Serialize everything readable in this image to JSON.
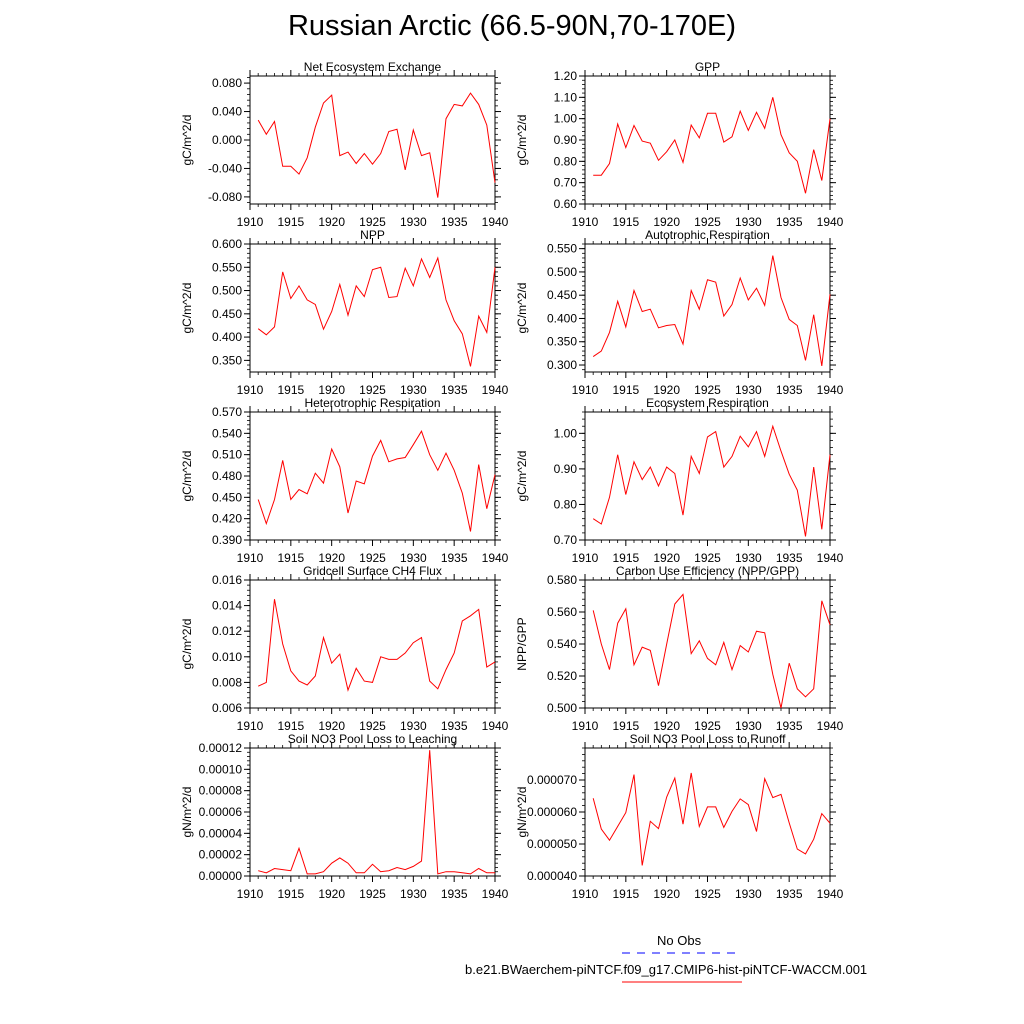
{
  "title": "Russian Arctic (66.5-90N,70-170E)",
  "legend": [
    {
      "label": "No Obs",
      "color": "#0000ff",
      "dash": true
    },
    {
      "label": "b.e21.BWaerchem-piNTCF.f09_g17.CMIP6-hist-piNTCF-WACCM.001",
      "color": "#ff0000",
      "dash": false
    }
  ],
  "chart_data": [
    {
      "type": "line",
      "title": "Net Ecosystem Exchange",
      "ylabel": "gC/m^2/d",
      "ylim": [
        -0.09,
        0.09
      ],
      "xlim": [
        1910,
        1940
      ],
      "yticks": [
        "0.080",
        "0.040",
        "0.000",
        "-0.040",
        "-0.080"
      ],
      "ytick_values": [
        0.08,
        0.04,
        0.0,
        -0.04,
        -0.08
      ],
      "xticks": [
        "1910",
        "1915",
        "1920",
        "1925",
        "1930",
        "1935",
        "1940"
      ],
      "x": [
        1911,
        1912,
        1913,
        1914,
        1915,
        1916,
        1917,
        1918,
        1919,
        1920,
        1921,
        1922,
        1923,
        1924,
        1925,
        1926,
        1927,
        1928,
        1929,
        1930,
        1931,
        1932,
        1933,
        1934,
        1935,
        1936,
        1937,
        1938,
        1939,
        1940
      ],
      "series": [
        {
          "values": [
            0.028,
            0.008,
            0.026,
            -0.037,
            -0.037,
            -0.048,
            -0.025,
            0.018,
            0.052,
            0.063,
            -0.022,
            -0.017,
            -0.033,
            -0.019,
            -0.034,
            -0.019,
            0.012,
            0.015,
            -0.042,
            0.014,
            -0.022,
            -0.018,
            -0.081,
            0.03,
            0.05,
            0.048,
            0.066,
            0.05,
            0.021,
            -0.06
          ]
        }
      ]
    },
    {
      "type": "line",
      "title": "GPP",
      "ylabel": "gC/m^2/d",
      "ylim": [
        0.6,
        1.2
      ],
      "xlim": [
        1910,
        1940
      ],
      "yticks": [
        "1.20",
        "1.10",
        "1.00",
        "0.90",
        "0.80",
        "0.70",
        "0.60"
      ],
      "ytick_values": [
        1.2,
        1.1,
        1.0,
        0.9,
        0.8,
        0.7,
        0.6
      ],
      "xticks": [
        "1910",
        "1915",
        "1920",
        "1925",
        "1930",
        "1935",
        "1940"
      ],
      "x": [
        1911,
        1912,
        1913,
        1914,
        1915,
        1916,
        1917,
        1918,
        1919,
        1920,
        1921,
        1922,
        1923,
        1924,
        1925,
        1926,
        1927,
        1928,
        1929,
        1930,
        1931,
        1932,
        1933,
        1934,
        1935,
        1936,
        1937,
        1938,
        1939,
        1940
      ],
      "series": [
        {
          "values": [
            0.735,
            0.735,
            0.79,
            0.975,
            0.865,
            0.968,
            0.895,
            0.885,
            0.805,
            0.845,
            0.9,
            0.795,
            0.97,
            0.91,
            1.025,
            1.025,
            0.89,
            0.915,
            1.035,
            0.945,
            1.03,
            0.955,
            1.1,
            0.925,
            0.84,
            0.8,
            0.65,
            0.855,
            0.71,
            1.0
          ]
        }
      ]
    },
    {
      "type": "line",
      "title": "NPP",
      "ylabel": "gC/m^2/d",
      "ylim": [
        0.325,
        0.6
      ],
      "xlim": [
        1910,
        1940
      ],
      "yticks": [
        "0.600",
        "0.550",
        "0.500",
        "0.450",
        "0.400",
        "0.350"
      ],
      "ytick_values": [
        0.6,
        0.55,
        0.5,
        0.45,
        0.4,
        0.35
      ],
      "xticks": [
        "1910",
        "1915",
        "1920",
        "1925",
        "1930",
        "1935",
        "1940"
      ],
      "x": [
        1911,
        1912,
        1913,
        1914,
        1915,
        1916,
        1917,
        1918,
        1919,
        1920,
        1921,
        1922,
        1923,
        1924,
        1925,
        1926,
        1927,
        1928,
        1929,
        1930,
        1931,
        1932,
        1933,
        1934,
        1935,
        1936,
        1937,
        1938,
        1939,
        1940
      ],
      "series": [
        {
          "values": [
            0.418,
            0.405,
            0.422,
            0.54,
            0.483,
            0.51,
            0.48,
            0.47,
            0.417,
            0.455,
            0.513,
            0.447,
            0.51,
            0.487,
            0.545,
            0.55,
            0.485,
            0.487,
            0.548,
            0.51,
            0.568,
            0.528,
            0.57,
            0.48,
            0.435,
            0.407,
            0.337,
            0.445,
            0.41,
            0.55
          ]
        }
      ]
    },
    {
      "type": "line",
      "title": "Autotrophic Respiration",
      "ylabel": "gC/m^2/d",
      "ylim": [
        0.285,
        0.56
      ],
      "xlim": [
        1910,
        1940
      ],
      "yticks": [
        "0.550",
        "0.500",
        "0.450",
        "0.400",
        "0.350",
        "0.300"
      ],
      "ytick_values": [
        0.55,
        0.5,
        0.45,
        0.4,
        0.35,
        0.3
      ],
      "xticks": [
        "1910",
        "1915",
        "1920",
        "1925",
        "1930",
        "1935",
        "1940"
      ],
      "x": [
        1911,
        1912,
        1913,
        1914,
        1915,
        1916,
        1917,
        1918,
        1919,
        1920,
        1921,
        1922,
        1923,
        1924,
        1925,
        1926,
        1927,
        1928,
        1929,
        1930,
        1931,
        1932,
        1933,
        1934,
        1935,
        1936,
        1937,
        1938,
        1939,
        1940
      ],
      "series": [
        {
          "values": [
            0.318,
            0.33,
            0.37,
            0.437,
            0.382,
            0.46,
            0.415,
            0.42,
            0.38,
            0.385,
            0.387,
            0.345,
            0.46,
            0.42,
            0.483,
            0.478,
            0.405,
            0.43,
            0.487,
            0.44,
            0.465,
            0.428,
            0.535,
            0.445,
            0.398,
            0.385,
            0.31,
            0.408,
            0.298,
            0.452
          ]
        }
      ]
    },
    {
      "type": "line",
      "title": "Heterotrophic Respiration",
      "ylabel": "gC/m^2/d",
      "ylim": [
        0.39,
        0.57
      ],
      "xlim": [
        1910,
        1940
      ],
      "yticks": [
        "0.570",
        "0.540",
        "0.510",
        "0.480",
        "0.450",
        "0.420",
        "0.390"
      ],
      "ytick_values": [
        0.57,
        0.54,
        0.51,
        0.48,
        0.45,
        0.42,
        0.39
      ],
      "xticks": [
        "1910",
        "1915",
        "1920",
        "1925",
        "1930",
        "1935",
        "1940"
      ],
      "x": [
        1911,
        1912,
        1913,
        1914,
        1915,
        1916,
        1917,
        1918,
        1919,
        1920,
        1921,
        1922,
        1923,
        1924,
        1925,
        1926,
        1927,
        1928,
        1929,
        1930,
        1931,
        1932,
        1933,
        1934,
        1935,
        1936,
        1937,
        1938,
        1939,
        1940
      ],
      "series": [
        {
          "values": [
            0.447,
            0.413,
            0.447,
            0.502,
            0.447,
            0.461,
            0.455,
            0.484,
            0.47,
            0.518,
            0.493,
            0.428,
            0.473,
            0.469,
            0.508,
            0.53,
            0.5,
            0.504,
            0.506,
            0.524,
            0.543,
            0.51,
            0.488,
            0.512,
            0.488,
            0.456,
            0.402,
            0.496,
            0.434,
            0.482
          ]
        }
      ]
    },
    {
      "type": "line",
      "title": "Ecosystem Respiration",
      "ylabel": "gC/m^2/d",
      "ylim": [
        0.7,
        1.06
      ],
      "xlim": [
        1910,
        1940
      ],
      "yticks": [
        "1.00",
        "0.90",
        "0.80",
        "0.70"
      ],
      "ytick_values": [
        1.0,
        0.9,
        0.8,
        0.7
      ],
      "xticks": [
        "1910",
        "1915",
        "1920",
        "1925",
        "1930",
        "1935",
        "1940"
      ],
      "x": [
        1911,
        1912,
        1913,
        1914,
        1915,
        1916,
        1917,
        1918,
        1919,
        1920,
        1921,
        1922,
        1923,
        1924,
        1925,
        1926,
        1927,
        1928,
        1929,
        1930,
        1931,
        1932,
        1933,
        1934,
        1935,
        1936,
        1937,
        1938,
        1939,
        1940
      ],
      "series": [
        {
          "values": [
            0.76,
            0.745,
            0.82,
            0.94,
            0.828,
            0.92,
            0.87,
            0.905,
            0.852,
            0.905,
            0.887,
            0.77,
            0.935,
            0.887,
            0.99,
            1.005,
            0.905,
            0.935,
            0.992,
            0.962,
            1.005,
            0.935,
            1.02,
            0.95,
            0.885,
            0.84,
            0.71,
            0.905,
            0.73,
            0.94
          ]
        }
      ]
    },
    {
      "type": "line",
      "title": "Gridcell Surface CH4 Flux",
      "ylabel": "gC/m^2/d",
      "ylim": [
        0.006,
        0.016
      ],
      "xlim": [
        1910,
        1940
      ],
      "yticks": [
        "0.016",
        "0.014",
        "0.012",
        "0.010",
        "0.008",
        "0.006"
      ],
      "ytick_values": [
        0.016,
        0.014,
        0.012,
        0.01,
        0.008,
        0.006
      ],
      "xticks": [
        "1910",
        "1915",
        "1920",
        "1925",
        "1930",
        "1935",
        "1940"
      ],
      "x": [
        1911,
        1912,
        1913,
        1914,
        1915,
        1916,
        1917,
        1918,
        1919,
        1920,
        1921,
        1922,
        1923,
        1924,
        1925,
        1926,
        1927,
        1928,
        1929,
        1930,
        1931,
        1932,
        1933,
        1934,
        1935,
        1936,
        1937,
        1938,
        1939,
        1940
      ],
      "series": [
        {
          "values": [
            0.0077,
            0.008,
            0.0145,
            0.011,
            0.0089,
            0.0081,
            0.0078,
            0.0085,
            0.0115,
            0.0095,
            0.0102,
            0.0074,
            0.0091,
            0.0081,
            0.008,
            0.01,
            0.0098,
            0.0098,
            0.0103,
            0.0111,
            0.0115,
            0.0081,
            0.0075,
            0.009,
            0.0103,
            0.0128,
            0.0132,
            0.0137,
            0.0092,
            0.0096
          ]
        }
      ]
    },
    {
      "type": "line",
      "title": "Carbon Use Efficiency (NPP/GPP)",
      "ylabel": "NPP/GPP",
      "ylim": [
        0.5,
        0.58
      ],
      "xlim": [
        1910,
        1940
      ],
      "yticks": [
        "0.580",
        "0.560",
        "0.540",
        "0.520",
        "0.500"
      ],
      "ytick_values": [
        0.58,
        0.56,
        0.54,
        0.52,
        0.5
      ],
      "xticks": [
        "1910",
        "1915",
        "1920",
        "1925",
        "1930",
        "1935",
        "1940"
      ],
      "x": [
        1911,
        1912,
        1913,
        1914,
        1915,
        1916,
        1917,
        1918,
        1919,
        1920,
        1921,
        1922,
        1923,
        1924,
        1925,
        1926,
        1927,
        1928,
        1929,
        1930,
        1931,
        1932,
        1933,
        1934,
        1935,
        1936,
        1937,
        1938,
        1939,
        1940
      ],
      "series": [
        {
          "values": [
            0.561,
            0.54,
            0.524,
            0.553,
            0.562,
            0.527,
            0.538,
            0.536,
            0.514,
            0.54,
            0.565,
            0.571,
            0.534,
            0.542,
            0.531,
            0.527,
            0.541,
            0.524,
            0.539,
            0.535,
            0.548,
            0.547,
            0.521,
            0.5,
            0.528,
            0.512,
            0.507,
            0.512,
            0.567,
            0.552
          ]
        }
      ]
    },
    {
      "type": "line",
      "title": "Soil NO3 Pool Loss to Leaching",
      "ylabel": "gN/m^2/d",
      "ylim": [
        0.0,
        0.00012
      ],
      "xlim": [
        1910,
        1940
      ],
      "yticks": [
        "0.00012",
        "0.00010",
        "0.00008",
        "0.00006",
        "0.00004",
        "0.00002",
        "0.00000"
      ],
      "ytick_values": [
        0.00012,
        0.0001,
        8e-05,
        6e-05,
        4e-05,
        2e-05,
        0.0
      ],
      "xticks": [
        "1910",
        "1915",
        "1920",
        "1925",
        "1930",
        "1935",
        "1940"
      ],
      "x": [
        1911,
        1912,
        1913,
        1914,
        1915,
        1916,
        1917,
        1918,
        1919,
        1920,
        1921,
        1922,
        1923,
        1924,
        1925,
        1926,
        1927,
        1928,
        1929,
        1930,
        1931,
        1932,
        1933,
        1934,
        1935,
        1936,
        1937,
        1938,
        1939,
        1940
      ],
      "series": [
        {
          "values": [
            5e-06,
            3e-06,
            7e-06,
            6e-06,
            5e-06,
            2.6e-05,
            2e-06,
            2e-06,
            4e-06,
            1.2e-05,
            1.7e-05,
            1.2e-05,
            3e-06,
            3e-06,
            1.1e-05,
            4e-06,
            5e-06,
            8e-06,
            6e-06,
            9e-06,
            1.4e-05,
            0.000118,
            2e-06,
            4e-06,
            4e-06,
            3e-06,
            2e-06,
            7e-06,
            3e-06,
            3e-06
          ]
        }
      ]
    },
    {
      "type": "line",
      "title": "Soil NO3 Pool Loss to Runoff",
      "ylabel": "gN/m^2/d",
      "ylim": [
        4e-05,
        8e-05
      ],
      "xlim": [
        1910,
        1940
      ],
      "yticks": [
        "0.000070",
        "0.000060",
        "0.000050",
        "0.000040"
      ],
      "ytick_values": [
        7e-05,
        6e-05,
        5e-05,
        4e-05
      ],
      "xticks": [
        "1910",
        "1915",
        "1920",
        "1925",
        "1930",
        "1935",
        "1940"
      ],
      "x": [
        1911,
        1912,
        1913,
        1914,
        1915,
        1916,
        1917,
        1918,
        1919,
        1920,
        1921,
        1922,
        1923,
        1924,
        1925,
        1926,
        1927,
        1928,
        1929,
        1930,
        1931,
        1932,
        1933,
        1934,
        1935,
        1936,
        1937,
        1938,
        1939,
        1940
      ],
      "series": [
        {
          "values": [
            6.43e-05,
            5.47e-05,
            5.12e-05,
            5.55e-05,
            5.98e-05,
            7.17e-05,
            4.33e-05,
            5.71e-05,
            5.48e-05,
            6.47e-05,
            7.06e-05,
            5.62e-05,
            7.22e-05,
            5.55e-05,
            6.16e-05,
            6.16e-05,
            5.52e-05,
            6.02e-05,
            6.41e-05,
            6.23e-05,
            5.39e-05,
            7.04e-05,
            6.45e-05,
            6.55e-05,
            5.66e-05,
            4.84e-05,
            4.69e-05,
            5.15e-05,
            5.95e-05,
            5.65e-05
          ]
        }
      ]
    }
  ]
}
